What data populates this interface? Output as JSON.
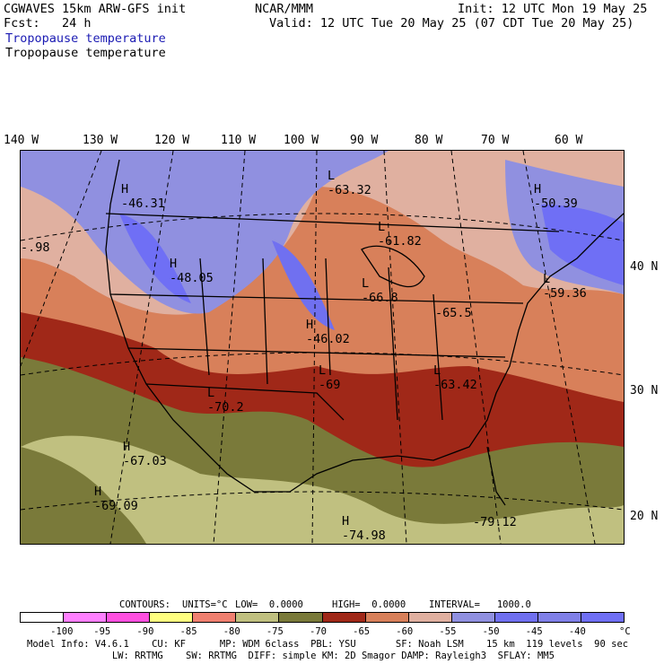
{
  "header": {
    "left_line1": "CGWAVES 15km ARW-GFS init",
    "left_line2": "Fcst:   24 h",
    "center": "NCAR/MMM",
    "init": "Init: 12 UTC Mon 19 May 25",
    "valid": "Valid: 12 UTC Tue 20 May 25 (07 CDT Tue 20 May 25)",
    "field_title_colored": "Tropopause temperature",
    "field_title": "Tropopause temperature",
    "field_title_color": "#1b1bb3"
  },
  "map": {
    "lon_labels": [
      "140 W",
      "130 W",
      "120 W",
      "110 W",
      "100 W",
      "90 W",
      "80 W",
      "70 W",
      "60 W"
    ],
    "lat_labels": [
      "40 N",
      "30 N",
      "20 N"
    ],
    "extreme_labels": [
      {
        "type": "H",
        "value": "-46.31"
      },
      {
        "type": "L",
        "value": "-63.32"
      },
      {
        "type": "H",
        "value": "-50.39"
      },
      {
        "type": "",
        "value": "-.98"
      },
      {
        "type": "L",
        "value": "-61.82"
      },
      {
        "type": "H",
        "value": "-48.05"
      },
      {
        "type": "L",
        "value": "-59.36"
      },
      {
        "type": "L",
        "value": "-66.8"
      },
      {
        "type": "",
        "value": "-65.5"
      },
      {
        "type": "H",
        "value": "-46.02"
      },
      {
        "type": "L",
        "value": "-69"
      },
      {
        "type": "L",
        "value": "-63.42"
      },
      {
        "type": "L",
        "value": "-70.2"
      },
      {
        "type": "H",
        "value": "-67.03"
      },
      {
        "type": "H",
        "value": "-69.09"
      },
      {
        "type": "H",
        "value": "-74.98"
      },
      {
        "type": "",
        "value": "-79.12"
      }
    ]
  },
  "contours": {
    "label": "CONTOURS:",
    "units": "UNITS=°C",
    "low": "LOW=  0.0000",
    "high": "HIGH=  0.0000",
    "interval": "INTERVAL=   1000.0"
  },
  "colorbar": {
    "colors": [
      "#ffffff",
      "#ff80ff",
      "#ff50e0",
      "#ffff80",
      "#f08070",
      "#c0c080",
      "#7a7a3a",
      "#a02818",
      "#d8805a",
      "#e0b0a0",
      "#9090e0",
      "#7070f0",
      "#8080e8",
      "#6f6ff5"
    ],
    "labels": [
      "-100",
      "-95",
      "-90",
      "-85",
      "-80",
      "-75",
      "-70",
      "-65",
      "-60",
      "-55",
      "-50",
      "-45",
      "-40"
    ],
    "unit": "°C"
  },
  "footer": {
    "line1": "Model Info: V4.6.1    CU: KF      MP: WDM 6class  PBL: YSU       SF: Noah LSM    15 km  119 levels  90 sec",
    "line2": "               LW: RRTMG    SW: RRTMG  DIFF: simple KM: 2D Smagor DAMP: Rayleigh3  SFLAY: MM5"
  }
}
